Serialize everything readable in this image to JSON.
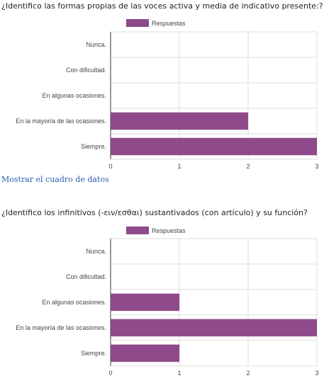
{
  "colors": {
    "bar": "#8e4a8a",
    "grid": "#dddddd",
    "axis": "#333333"
  },
  "links": {
    "show_data": "Mostrar el cuadro de datos"
  },
  "chart_data": [
    {
      "type": "bar",
      "orientation": "horizontal",
      "title": "¿Identifico las formas propias de las voces activa y media de indicativo presente:?",
      "legend": {
        "position": "top",
        "entries": [
          "Respuestas"
        ]
      },
      "categories": [
        "Nunca.",
        "Con dificultad.",
        "En algunas ocasiones.",
        "En la mayoría de las ocasiones.",
        "Siempre."
      ],
      "series": [
        {
          "name": "Respuestas",
          "values": [
            0,
            0,
            0,
            2,
            3
          ]
        }
      ],
      "xlim": [
        0,
        3
      ],
      "xticks": [
        "0",
        "1",
        "2",
        "3"
      ],
      "grid": true
    },
    {
      "type": "bar",
      "orientation": "horizontal",
      "title": "¿Identifico los infinitivos (-ειν/εσθαι) sustantivados (con artículo) y su función?",
      "legend": {
        "position": "top",
        "entries": [
          "Respuestas"
        ]
      },
      "categories": [
        "Nunca.",
        "Con dificultad.",
        "En algunas ocasiones.",
        "En la mayoría de las ocasiones.",
        "Siempre."
      ],
      "series": [
        {
          "name": "Respuestas",
          "values": [
            0,
            0,
            1,
            3,
            1
          ]
        }
      ],
      "xlim": [
        0,
        3
      ],
      "xticks": [
        "0",
        "1",
        "2",
        "3"
      ],
      "grid": true
    }
  ]
}
